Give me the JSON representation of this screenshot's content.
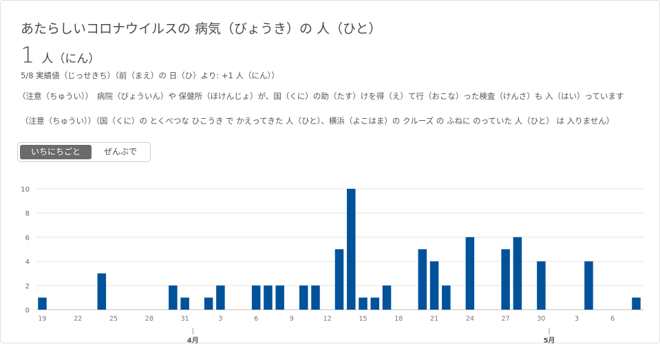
{
  "header": {
    "title": "あたらしいコロナウイルスの 病気（びょうき）の 人（ひと）",
    "count": "1",
    "count_unit": "人（にん）",
    "subtitle": "5/8 実績値（じっせきち）（前（まえ）の 日（ひ）より: +1 人（にん））"
  },
  "notes": {
    "line1": "（注意（ちゅうい））　病院（びょういん）や 保健所（ほけんじょ）が、国（くに）の助（たす）けを得（え）て行（おこな）った検査（けんさ）も 入（はい）っています",
    "line2": "（注意（ちゅうい））（国（くに）の とくべつな ひこうき で かえってきた 人（ひと）、横浜（よこはま）の クルーズ の ふねに のっていた 人（ひと） は 入りません）"
  },
  "toggle": {
    "daily_label": "いちにちごと",
    "total_label": "ぜんぶで"
  },
  "chart_data": {
    "type": "bar",
    "color": "#00529b",
    "ylim": [
      0,
      10
    ],
    "yticks": [
      "0",
      "2",
      "4",
      "6",
      "8",
      "10"
    ],
    "x": [
      "3/19",
      "3/20",
      "3/21",
      "3/22",
      "3/23",
      "3/24",
      "3/25",
      "3/26",
      "3/27",
      "3/28",
      "3/29",
      "3/30",
      "3/31",
      "4/1",
      "4/2",
      "4/3",
      "4/4",
      "4/5",
      "4/6",
      "4/7",
      "4/8",
      "4/9",
      "4/10",
      "4/11",
      "4/12",
      "4/13",
      "4/14",
      "4/15",
      "4/16",
      "4/17",
      "4/18",
      "4/19",
      "4/20",
      "4/21",
      "4/22",
      "4/23",
      "4/24",
      "4/25",
      "4/26",
      "4/27",
      "4/28",
      "4/29",
      "4/30",
      "5/1",
      "5/2",
      "5/3",
      "5/4",
      "5/5",
      "5/6",
      "5/7",
      "5/8"
    ],
    "values": [
      1,
      0,
      0,
      0,
      0,
      3,
      0,
      0,
      0,
      0,
      0,
      2,
      1,
      0,
      1,
      2,
      0,
      0,
      2,
      2,
      2,
      0,
      2,
      2,
      0,
      5,
      10,
      1,
      1,
      2,
      0,
      0,
      5,
      4,
      2,
      0,
      6,
      0,
      0,
      5,
      6,
      0,
      4,
      0,
      0,
      0,
      4,
      0,
      0,
      0,
      1
    ],
    "xtick_labels": [
      "19",
      "22",
      "25",
      "28",
      "31",
      "3",
      "6",
      "9",
      "12",
      "15",
      "18",
      "21",
      "24",
      "27",
      "30",
      "3",
      "6"
    ],
    "xtick_index": [
      0,
      3,
      6,
      9,
      12,
      15,
      18,
      21,
      24,
      27,
      30,
      33,
      36,
      39,
      42,
      45,
      48
    ],
    "month_labels": [
      {
        "label": "4月",
        "index": 13
      },
      {
        "label": "5月",
        "index": 43
      }
    ]
  }
}
